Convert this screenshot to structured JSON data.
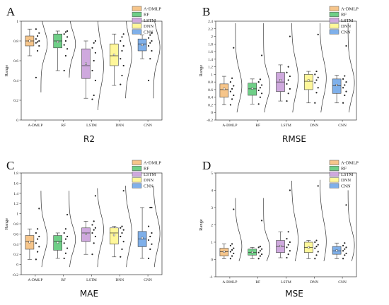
{
  "figure": {
    "series_names": [
      "A-DMLP",
      "RF",
      "LSTM",
      "DNN",
      "CNN"
    ],
    "colors": [
      "#f6c58a",
      "#6fcf87",
      "#cfa9de",
      "#fff79a",
      "#7fb0ea"
    ]
  },
  "chart_data": [
    {
      "type": "box",
      "letter": "A",
      "title": "R2",
      "ylabel": "Range",
      "ylim": [
        0.0,
        1.0
      ],
      "yticks": [
        0.0,
        0.2,
        0.4,
        0.6,
        0.8,
        1.0
      ],
      "categories": [
        "A-DMLP",
        "RF",
        "LSTM",
        "DNN",
        "CNN"
      ],
      "boxes": [
        {
          "q1": 0.75,
          "median": 0.8,
          "q3": 0.85,
          "mean": 0.8,
          "whisker_low": 0.65,
          "whisker_high": 0.92,
          "points": [
            0.43,
            0.7,
            0.75,
            0.78,
            0.79,
            0.8,
            0.82,
            0.85,
            0.88,
            0.92
          ],
          "curve_range": [
            0.28,
            1.0
          ]
        },
        {
          "q1": 0.73,
          "median": 0.8,
          "q3": 0.87,
          "mean": 0.79,
          "whisker_low": 0.5,
          "whisker_high": 0.9,
          "points": [
            0.5,
            0.65,
            0.72,
            0.76,
            0.8,
            0.84,
            0.87,
            0.89,
            0.9
          ],
          "curve_range": [
            0.43,
            1.0
          ]
        },
        {
          "q1": 0.42,
          "median": 0.55,
          "q3": 0.72,
          "mean": 0.57,
          "whisker_low": 0.22,
          "whisker_high": 0.8,
          "points": [
            0.21,
            0.25,
            0.4,
            0.5,
            0.6,
            0.68,
            0.73,
            0.78,
            0.8
          ],
          "curve_range": [
            0.1,
            1.0
          ]
        },
        {
          "q1": 0.55,
          "median": 0.65,
          "q3": 0.77,
          "mean": 0.66,
          "whisker_low": 0.35,
          "whisker_high": 0.87,
          "points": [
            0.36,
            0.45,
            0.55,
            0.62,
            0.7,
            0.75,
            0.8,
            0.84,
            0.87
          ],
          "curve_range": [
            0.22,
            1.0
          ]
        },
        {
          "q1": 0.7,
          "median": 0.77,
          "q3": 0.82,
          "mean": 0.76,
          "whisker_low": 0.62,
          "whisker_high": 0.86,
          "points": [
            0.4,
            0.62,
            0.7,
            0.75,
            0.78,
            0.8,
            0.83,
            0.86,
            0.88
          ],
          "curve_range": [
            0.22,
            1.0
          ]
        }
      ]
    },
    {
      "type": "box",
      "letter": "B",
      "title": "RMSE",
      "ylabel": "Range",
      "ylim": [
        -0.2,
        2.4
      ],
      "yticks": [
        -0.2,
        0.0,
        0.2,
        0.4,
        0.6,
        0.8,
        1.0,
        1.2,
        1.4,
        1.6,
        1.8,
        2.0,
        2.2,
        2.4
      ],
      "categories": [
        "A-DMLP",
        "RF",
        "LSTM",
        "DNN",
        "CNN"
      ],
      "boxes": [
        {
          "q1": 0.4,
          "median": 0.6,
          "q3": 0.75,
          "mean": 0.62,
          "whisker_low": 0.2,
          "whisker_high": 0.95,
          "points": [
            0.2,
            0.35,
            0.45,
            0.55,
            0.62,
            0.7,
            0.8,
            0.9,
            1.7
          ],
          "curve_range": [
            0.0,
            2.35
          ]
        },
        {
          "q1": 0.45,
          "median": 0.62,
          "q3": 0.77,
          "mean": 0.63,
          "whisker_low": 0.22,
          "whisker_high": 0.88,
          "points": [
            0.22,
            0.4,
            0.5,
            0.58,
            0.65,
            0.72,
            0.8,
            0.87,
            1.5
          ],
          "curve_range": [
            0.0,
            2.35
          ]
        },
        {
          "q1": 0.55,
          "median": 0.8,
          "q3": 1.05,
          "mean": 0.85,
          "whisker_low": 0.3,
          "whisker_high": 1.25,
          "points": [
            0.3,
            0.5,
            0.62,
            0.75,
            0.85,
            0.95,
            1.05,
            1.2,
            2.0
          ],
          "curve_range": [
            0.0,
            2.35
          ]
        },
        {
          "q1": 0.6,
          "median": 0.82,
          "q3": 1.0,
          "mean": 0.84,
          "whisker_low": 0.25,
          "whisker_high": 1.08,
          "points": [
            0.25,
            0.52,
            0.65,
            0.78,
            0.85,
            0.92,
            1.0,
            1.08,
            2.05
          ],
          "curve_range": [
            0.0,
            2.35
          ]
        },
        {
          "q1": 0.5,
          "median": 0.7,
          "q3": 0.88,
          "mean": 0.72,
          "whisker_low": 0.25,
          "whisker_high": 0.98,
          "points": [
            0.25,
            0.45,
            0.55,
            0.65,
            0.72,
            0.8,
            0.88,
            0.96,
            1.75
          ],
          "curve_range": [
            0.0,
            2.35
          ]
        }
      ]
    },
    {
      "type": "box",
      "letter": "C",
      "title": "MAE",
      "ylabel": "Range",
      "ylim": [
        -0.2,
        1.8
      ],
      "yticks": [
        -0.2,
        0.0,
        0.2,
        0.4,
        0.6,
        0.8,
        1.0,
        1.2,
        1.4,
        1.6,
        1.8
      ],
      "categories": [
        "A-DMLP",
        "RF",
        "LSTM",
        "DNN",
        "CNN"
      ],
      "boxes": [
        {
          "q1": 0.3,
          "median": 0.45,
          "q3": 0.57,
          "mean": 0.44,
          "whisker_low": 0.1,
          "whisker_high": 0.7,
          "points": [
            0.1,
            0.25,
            0.35,
            0.42,
            0.5,
            0.55,
            0.62,
            0.7,
            1.1
          ],
          "curve_range": [
            -0.05,
            1.45
          ]
        },
        {
          "q1": 0.28,
          "median": 0.45,
          "q3": 0.57,
          "mean": 0.43,
          "whisker_low": 0.12,
          "whisker_high": 0.62,
          "points": [
            0.12,
            0.22,
            0.32,
            0.42,
            0.5,
            0.55,
            0.62,
            0.7,
            0.98
          ],
          "curve_range": [
            -0.05,
            1.45
          ]
        },
        {
          "q1": 0.45,
          "median": 0.62,
          "q3": 0.72,
          "mean": 0.6,
          "whisker_low": 0.2,
          "whisker_high": 0.85,
          "points": [
            0.2,
            0.42,
            0.55,
            0.62,
            0.68,
            0.72,
            0.78,
            0.85,
            1.35
          ],
          "curve_range": [
            -0.05,
            1.5
          ]
        },
        {
          "q1": 0.4,
          "median": 0.62,
          "q3": 0.72,
          "mean": 0.58,
          "whisker_low": 0.15,
          "whisker_high": 0.75,
          "points": [
            0.15,
            0.3,
            0.45,
            0.55,
            0.62,
            0.68,
            0.72,
            0.75,
            1.45
          ],
          "curve_range": [
            -0.05,
            1.55
          ]
        },
        {
          "q1": 0.35,
          "median": 0.5,
          "q3": 0.65,
          "mean": 0.52,
          "whisker_low": 0.12,
          "whisker_high": 1.12,
          "points": [
            0.12,
            0.3,
            0.4,
            0.48,
            0.55,
            0.62,
            0.75,
            1.12,
            1.12
          ],
          "curve_range": [
            -0.05,
            1.55
          ]
        }
      ]
    },
    {
      "type": "box",
      "letter": "D",
      "title": "MSE",
      "ylabel": "Range",
      "ylim": [
        -1,
        5
      ],
      "yticks": [
        -1,
        0,
        1,
        2,
        3,
        4,
        5
      ],
      "categories": [
        "A-DMLP",
        "RF",
        "LSTM",
        "DNN",
        "CNN"
      ],
      "boxes": [
        {
          "q1": 0.2,
          "median": 0.45,
          "q3": 0.65,
          "mean": 0.45,
          "whisker_low": 0.05,
          "whisker_high": 0.9,
          "points": [
            0.05,
            0.2,
            0.35,
            0.45,
            0.55,
            0.65,
            0.8,
            0.9,
            2.9
          ],
          "curve_range": [
            -0.1,
            3.55
          ]
        },
        {
          "q1": 0.25,
          "median": 0.4,
          "q3": 0.6,
          "mean": 0.42,
          "whisker_low": 0.05,
          "whisker_high": 0.7,
          "points": [
            0.05,
            0.2,
            0.3,
            0.4,
            0.5,
            0.6,
            0.7,
            0.75,
            2.25
          ],
          "curve_range": [
            -0.1,
            3.55
          ]
        },
        {
          "q1": 0.4,
          "median": 0.75,
          "q3": 1.1,
          "mean": 0.78,
          "whisker_low": 0.1,
          "whisker_high": 1.6,
          "points": [
            0.1,
            0.3,
            0.5,
            0.7,
            0.85,
            1.0,
            1.2,
            1.6,
            4.0
          ],
          "curve_range": [
            -0.1,
            4.55
          ]
        },
        {
          "q1": 0.4,
          "median": 0.7,
          "q3": 1.0,
          "mean": 0.7,
          "whisker_low": 0.05,
          "whisker_high": 1.1,
          "points": [
            0.05,
            0.25,
            0.45,
            0.65,
            0.75,
            0.85,
            1.0,
            1.1,
            4.25
          ],
          "curve_range": [
            -0.1,
            4.6
          ]
        },
        {
          "q1": 0.3,
          "median": 0.5,
          "q3": 0.75,
          "mean": 0.52,
          "whisker_low": 0.05,
          "whisker_high": 0.95,
          "points": [
            0.05,
            0.25,
            0.35,
            0.5,
            0.6,
            0.7,
            0.8,
            0.95,
            3.15
          ],
          "curve_range": [
            -0.1,
            4.0
          ]
        }
      ]
    }
  ]
}
